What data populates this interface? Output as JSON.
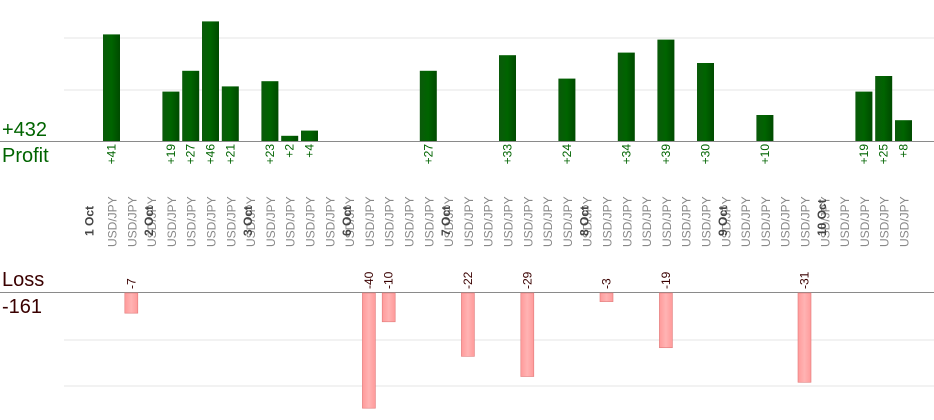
{
  "summary": {
    "profit_total": "+432",
    "profit_label": "Profit",
    "loss_label": "Loss",
    "loss_total": "-161"
  },
  "colors": {
    "profit_bar": "#006400",
    "profit_text": "#006400",
    "loss_bar": "#ffb3b3",
    "loss_text": "#3a0000",
    "axis_text": "#888888",
    "grid": "#e6e6e6"
  },
  "chart_data": {
    "type": "bar",
    "grid": true,
    "series": [
      {
        "values": [
          41,
          null,
          null,
          19,
          27,
          46,
          21,
          null,
          23,
          2,
          4,
          null,
          null,
          null,
          null,
          null,
          27,
          null,
          null,
          null,
          33,
          null,
          null,
          24,
          null,
          null,
          34,
          null,
          39,
          null,
          30,
          null,
          null,
          10,
          null,
          null,
          null,
          null,
          19,
          25,
          8
        ]
      },
      {
        "values": [
          null,
          -7,
          null,
          null,
          null,
          null,
          null,
          null,
          null,
          null,
          null,
          null,
          null,
          -40,
          -10,
          null,
          null,
          null,
          -22,
          null,
          null,
          -29,
          null,
          null,
          null,
          -3,
          null,
          null,
          -19,
          null,
          null,
          null,
          null,
          null,
          null,
          -31,
          null,
          null,
          null,
          null,
          null
        ]
      }
    ],
    "categories": [
      "USD/JPY",
      "USD/JPY",
      "USD/JPY",
      "USD/JPY",
      "USD/JPY",
      "USD/JPY",
      "USD/JPY",
      "USD/JPY",
      "USD/JPY",
      "USD/JPY",
      "USD/JPY",
      "USD/JPY",
      "USD/JPY",
      "USD/JPY",
      "USD/JPY",
      "USD/JPY",
      "USD/JPY",
      "USD/JPY",
      "USD/JPY",
      "USD/JPY",
      "USD/JPY",
      "USD/JPY",
      "USD/JPY",
      "USD/JPY",
      "USD/JPY",
      "USD/JPY",
      "USD/JPY",
      "USD/JPY",
      "USD/JPY",
      "USD/JPY",
      "USD/JPY",
      "USD/JPY",
      "USD/JPY",
      "USD/JPY",
      "USD/JPY",
      "USD/JPY",
      "USD/JPY",
      "USD/JPY",
      "USD/JPY",
      "USD/JPY",
      "USD/JPY"
    ],
    "days": [
      {
        "label": "1 Oct",
        "first": 0,
        "count": 3
      },
      {
        "label": "2 Oct",
        "first": 3,
        "count": 5
      },
      {
        "label": "3 Oct",
        "first": 8,
        "count": 5
      },
      {
        "label": "6 Oct",
        "first": 13,
        "count": 5
      },
      {
        "label": "7 Oct",
        "first": 18,
        "count": 7
      },
      {
        "label": "8 Oct",
        "first": 25,
        "count": 7
      },
      {
        "label": "9 Oct",
        "first": 32,
        "count": 5
      },
      {
        "label": "10 Oct",
        "first": 37,
        "count": 4
      }
    ]
  }
}
